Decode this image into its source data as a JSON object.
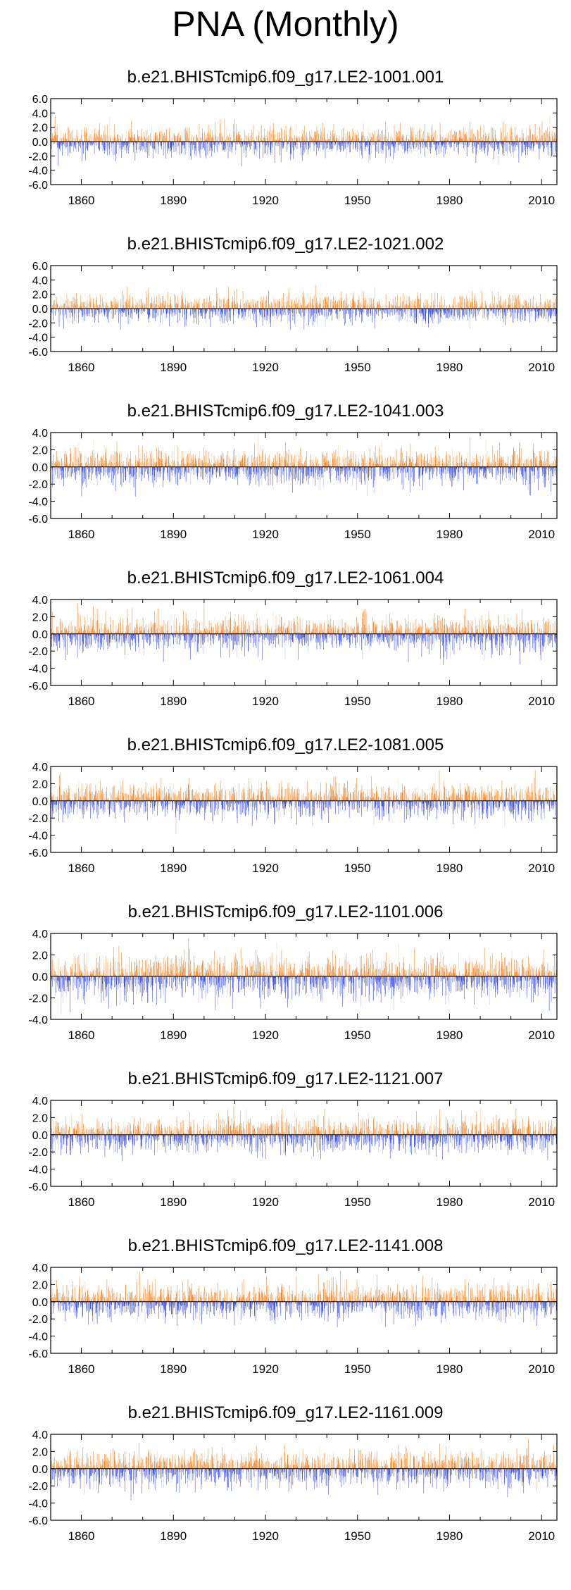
{
  "figure": {
    "title": "PNA (Monthly)"
  },
  "chart_data": [
    {
      "type": "bar",
      "title": "b.e21.BHISTcmip6.f09_g17.LE2-1001.001",
      "xlim": [
        1850,
        2015
      ],
      "ylim": [
        -6,
        6
      ],
      "yticks": [
        "6.0",
        "4.0",
        "2.0",
        "0.0",
        "-2.0",
        "-4.0",
        "-6.0"
      ],
      "xticks": [
        "1860",
        "1890",
        "1920",
        "1950",
        "1980",
        "2010"
      ],
      "series": [
        {
          "name": "positive",
          "color": "#f07c1a"
        },
        {
          "name": "negative",
          "color": "#2c3fd6"
        }
      ],
      "seed": 101,
      "values_note": "monthly PNA index, roughly -4 to +3.5"
    },
    {
      "type": "bar",
      "title": "b.e21.BHISTcmip6.f09_g17.LE2-1021.002",
      "xlim": [
        1850,
        2015
      ],
      "ylim": [
        -6,
        6
      ],
      "yticks": [
        "6.0",
        "4.0",
        "2.0",
        "0.0",
        "-2.0",
        "-4.0",
        "-6.0"
      ],
      "xticks": [
        "1860",
        "1890",
        "1920",
        "1950",
        "1980",
        "2010"
      ],
      "series": [
        {
          "name": "positive",
          "color": "#f07c1a"
        },
        {
          "name": "negative",
          "color": "#2c3fd6"
        }
      ],
      "seed": 202,
      "values_note": "monthly PNA index, roughly -4 to +3.5"
    },
    {
      "type": "bar",
      "title": "b.e21.BHISTcmip6.f09_g17.LE2-1041.003",
      "xlim": [
        1850,
        2015
      ],
      "ylim": [
        -6,
        4
      ],
      "yticks": [
        "4.0",
        "2.0",
        "0.0",
        "-2.0",
        "-4.0",
        "-6.0"
      ],
      "xticks": [
        "1860",
        "1890",
        "1920",
        "1950",
        "1980",
        "2010"
      ],
      "series": [
        {
          "name": "positive",
          "color": "#f07c1a"
        },
        {
          "name": "negative",
          "color": "#2c3fd6"
        }
      ],
      "seed": 303,
      "values_note": "monthly PNA index, roughly -4 to +3.5"
    },
    {
      "type": "bar",
      "title": "b.e21.BHISTcmip6.f09_g17.LE2-1061.004",
      "xlim": [
        1850,
        2015
      ],
      "ylim": [
        -6,
        4
      ],
      "yticks": [
        "4.0",
        "2.0",
        "0.0",
        "-2.0",
        "-4.0",
        "-6.0"
      ],
      "xticks": [
        "1860",
        "1890",
        "1920",
        "1950",
        "1980",
        "2010"
      ],
      "series": [
        {
          "name": "positive",
          "color": "#f07c1a"
        },
        {
          "name": "negative",
          "color": "#2c3fd6"
        }
      ],
      "seed": 404,
      "values_note": "monthly PNA index, roughly -4 to +3.5"
    },
    {
      "type": "bar",
      "title": "b.e21.BHISTcmip6.f09_g17.LE2-1081.005",
      "xlim": [
        1850,
        2015
      ],
      "ylim": [
        -6,
        4
      ],
      "yticks": [
        "4.0",
        "2.0",
        "0.0",
        "-2.0",
        "-4.0",
        "-6.0"
      ],
      "xticks": [
        "1860",
        "1890",
        "1920",
        "1950",
        "1980",
        "2010"
      ],
      "series": [
        {
          "name": "positive",
          "color": "#f07c1a"
        },
        {
          "name": "negative",
          "color": "#2c3fd6"
        }
      ],
      "seed": 505,
      "values_note": "monthly PNA index, roughly -4 to +3.5"
    },
    {
      "type": "bar",
      "title": "b.e21.BHISTcmip6.f09_g17.LE2-1101.006",
      "xlim": [
        1850,
        2015
      ],
      "ylim": [
        -4,
        4
      ],
      "yticks": [
        "4.0",
        "2.0",
        "0.0",
        "-2.0",
        "-4.0"
      ],
      "xticks": [
        "1860",
        "1890",
        "1920",
        "1950",
        "1980",
        "2010"
      ],
      "series": [
        {
          "name": "positive",
          "color": "#f07c1a"
        },
        {
          "name": "negative",
          "color": "#2c3fd6"
        }
      ],
      "seed": 606,
      "values_note": "monthly PNA index, roughly -4 to +3.5"
    },
    {
      "type": "bar",
      "title": "b.e21.BHISTcmip6.f09_g17.LE2-1121.007",
      "xlim": [
        1850,
        2015
      ],
      "ylim": [
        -6,
        4
      ],
      "yticks": [
        "4.0",
        "2.0",
        "0.0",
        "-2.0",
        "-4.0",
        "-6.0"
      ],
      "xticks": [
        "1860",
        "1890",
        "1920",
        "1950",
        "1980",
        "2010"
      ],
      "series": [
        {
          "name": "positive",
          "color": "#f07c1a"
        },
        {
          "name": "negative",
          "color": "#2c3fd6"
        }
      ],
      "seed": 707,
      "values_note": "monthly PNA index, roughly -4 to +3.5"
    },
    {
      "type": "bar",
      "title": "b.e21.BHISTcmip6.f09_g17.LE2-1141.008",
      "xlim": [
        1850,
        2015
      ],
      "ylim": [
        -6,
        4
      ],
      "yticks": [
        "4.0",
        "2.0",
        "0.0",
        "-2.0",
        "-4.0",
        "-6.0"
      ],
      "xticks": [
        "1860",
        "1890",
        "1920",
        "1950",
        "1980",
        "2010"
      ],
      "series": [
        {
          "name": "positive",
          "color": "#f07c1a"
        },
        {
          "name": "negative",
          "color": "#2c3fd6"
        }
      ],
      "seed": 808,
      "values_note": "monthly PNA index, roughly -4 to +3.5"
    },
    {
      "type": "bar",
      "title": "b.e21.BHISTcmip6.f09_g17.LE2-1161.009",
      "xlim": [
        1850,
        2015
      ],
      "ylim": [
        -6,
        4
      ],
      "yticks": [
        "4.0",
        "2.0",
        "0.0",
        "-2.0",
        "-4.0",
        "-6.0"
      ],
      "xticks": [
        "1860",
        "1890",
        "1920",
        "1950",
        "1980",
        "2010"
      ],
      "series": [
        {
          "name": "positive",
          "color": "#f07c1a"
        },
        {
          "name": "negative",
          "color": "#2c3fd6"
        }
      ],
      "seed": 909,
      "values_note": "monthly PNA index, roughly -4 to +3.5"
    }
  ]
}
